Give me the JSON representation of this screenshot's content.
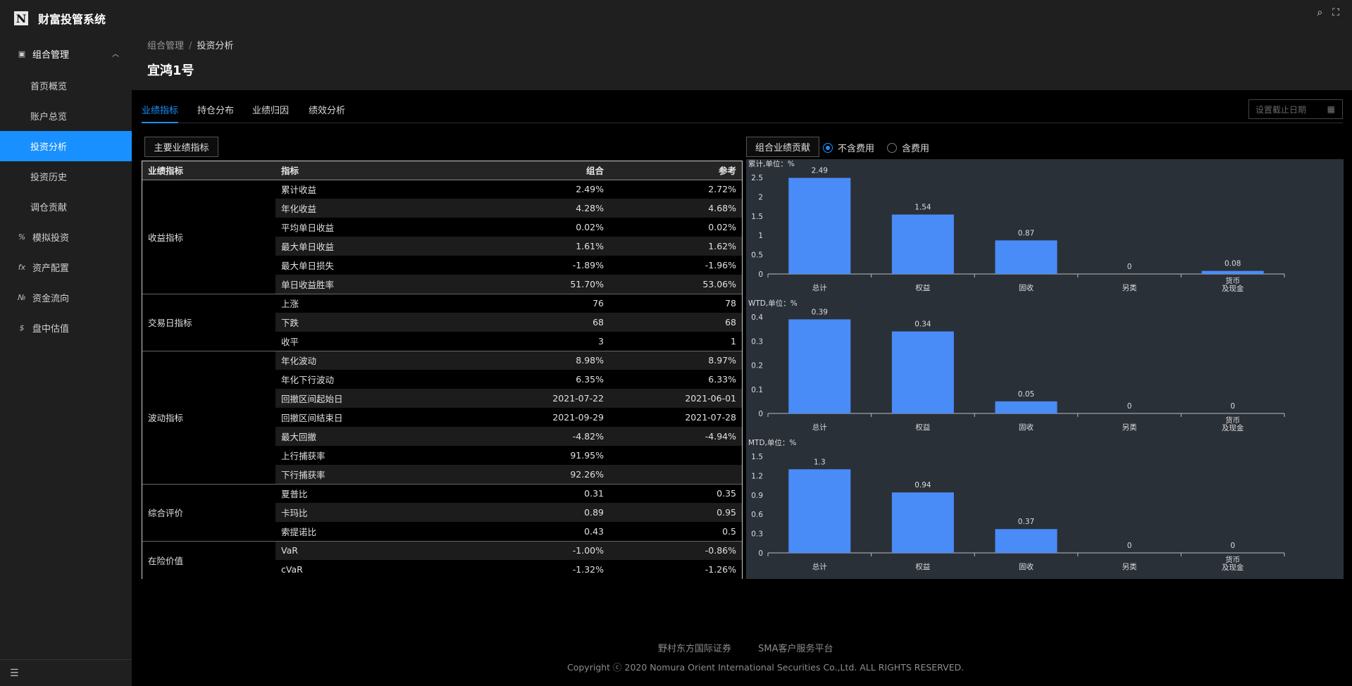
{
  "app": {
    "logo_letter": "N",
    "title": "财富投管系统"
  },
  "sidebar": {
    "group_label": "组合管理",
    "group_icon": "portfolio-icon",
    "sub_items": [
      "首页概览",
      "账户总览",
      "投资分析",
      "投资历史",
      "调仓贡献"
    ],
    "active_sub": "投资分析",
    "items": [
      {
        "icon_glyph": "%",
        "label": "模拟投资"
      },
      {
        "icon_glyph": "fx",
        "label": "资产配置"
      },
      {
        "icon_glyph": "№",
        "label": "资金流向"
      },
      {
        "icon_glyph": "$",
        "label": "盘中估值"
      }
    ]
  },
  "breadcrumb": {
    "parent": "组合管理",
    "sep": "/",
    "current": "投资分析"
  },
  "page_title": "宜鸿1号",
  "tabs": [
    "业绩指标",
    "持仓分布",
    "业绩归因",
    "绩效分析"
  ],
  "active_tab": "业绩指标",
  "date_picker": {
    "placeholder": "设置截止日期"
  },
  "table_section": {
    "button": "主要业绩指标"
  },
  "chart_section": {
    "button": "组合业绩贡献",
    "radio_options": [
      "不含费用",
      "含费用"
    ],
    "selected": "不含费用"
  },
  "table": {
    "headers": [
      "业绩指标",
      "指标",
      "组合",
      "参考"
    ],
    "groups": [
      {
        "name": "收益指标",
        "rows": [
          [
            "累计收益",
            "2.49%",
            "2.72%"
          ],
          [
            "年化收益",
            "4.28%",
            "4.68%"
          ],
          [
            "平均单日收益",
            "0.02%",
            "0.02%"
          ],
          [
            "最大单日收益",
            "1.61%",
            "1.62%"
          ],
          [
            "最大单日损失",
            "-1.89%",
            "-1.96%"
          ],
          [
            "单日收益胜率",
            "51.70%",
            "53.06%"
          ]
        ]
      },
      {
        "name": "交易日指标",
        "rows": [
          [
            "上涨",
            "76",
            "78"
          ],
          [
            "下跌",
            "68",
            "68"
          ],
          [
            "收平",
            "3",
            "1"
          ]
        ]
      },
      {
        "name": "波动指标",
        "rows": [
          [
            "年化波动",
            "8.98%",
            "8.97%"
          ],
          [
            "年化下行波动",
            "6.35%",
            "6.33%"
          ],
          [
            "回撤区间起始日",
            "2021-07-22",
            "2021-06-01"
          ],
          [
            "回撤区间结束日",
            "2021-09-29",
            "2021-07-28"
          ],
          [
            "最大回撤",
            "-4.82%",
            "-4.94%"
          ],
          [
            "上行捕获率",
            "91.95%",
            ""
          ],
          [
            "下行捕获率",
            "92.26%",
            ""
          ]
        ]
      },
      {
        "name": "综合评价",
        "rows": [
          [
            "夏普比",
            "0.31",
            "0.35"
          ],
          [
            "卡玛比",
            "0.89",
            "0.95"
          ],
          [
            "索提诺比",
            "0.43",
            "0.5"
          ]
        ]
      },
      {
        "name": "在险价值",
        "rows": [
          [
            "VaR",
            "-1.00%",
            "-0.86%"
          ],
          [
            "cVaR",
            "-1.32%",
            "-1.26%"
          ]
        ]
      }
    ]
  },
  "chart_data": [
    {
      "type": "bar",
      "title": "累计,单位：%",
      "categories": [
        "总计",
        "权益",
        "固收",
        "另类",
        "货币\n及现金"
      ],
      "values": [
        2.49,
        1.54,
        0.87,
        0,
        0.08
      ],
      "value_labels": [
        "2.49",
        "1.54",
        "0.87",
        "0",
        "0.08"
      ],
      "yticks": [
        "0",
        "0.5",
        "1",
        "1.5",
        "2",
        "2.5"
      ],
      "ylim": [
        0,
        2.5
      ],
      "bar_color": "#4a8cf7"
    },
    {
      "type": "bar",
      "title": "WTD,单位：%",
      "categories": [
        "总计",
        "权益",
        "固收",
        "另类",
        "货币\n及现金"
      ],
      "values": [
        0.39,
        0.34,
        0.05,
        0,
        0
      ],
      "value_labels": [
        "0.39",
        "0.34",
        "0.05",
        "0",
        "0"
      ],
      "yticks": [
        "0",
        "0.1",
        "0.2",
        "0.3",
        "0.4"
      ],
      "ylim": [
        0,
        0.4
      ],
      "bar_color": "#4a8cf7"
    },
    {
      "type": "bar",
      "title": "MTD,单位：%",
      "categories": [
        "总计",
        "权益",
        "固收",
        "另类",
        "货币\n及现金"
      ],
      "values": [
        1.3,
        0.94,
        0.37,
        0,
        0
      ],
      "value_labels": [
        "1.3",
        "0.94",
        "0.37",
        "0",
        "0"
      ],
      "yticks": [
        "0",
        "0.3",
        "0.6",
        "0.9",
        "1.2",
        "1.5"
      ],
      "ylim": [
        0,
        1.5
      ],
      "bar_color": "#4a8cf7"
    }
  ],
  "footer": {
    "links": [
      "野村东方国际证券",
      "SMA客户服务平台"
    ],
    "copyright": "Copyright ⓒ 2020 Nomura Orient International Securities Co.,Ltd. ALL RIGHTS RESERVED."
  }
}
